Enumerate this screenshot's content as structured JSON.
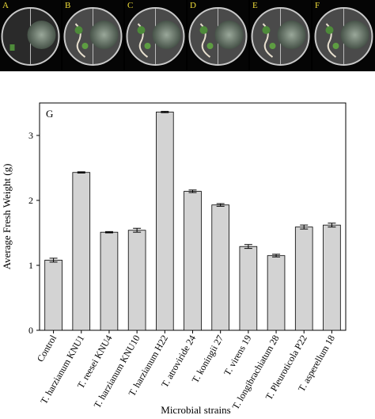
{
  "photo_panels": [
    {
      "letter": "A"
    },
    {
      "letter": "B"
    },
    {
      "letter": "C"
    },
    {
      "letter": "D"
    },
    {
      "letter": "E"
    },
    {
      "letter": "F"
    }
  ],
  "chart_data": {
    "type": "bar",
    "panel_label": "G",
    "categories": [
      "Control",
      "T. harzianum KNU1",
      "T. reesei KNU4",
      "T. harzianum KNU10",
      "T. harzianum H22",
      "T. atroviride 24",
      "T. koningii 27",
      "T. virens 19",
      "T. longibrachiatum 28",
      "T. Pleuroticola P22",
      "T. asperellum 18"
    ],
    "values": [
      1.08,
      2.43,
      1.51,
      1.54,
      3.36,
      2.14,
      1.93,
      1.29,
      1.15,
      1.59,
      1.62
    ],
    "errors": [
      0.03,
      0.01,
      0.01,
      0.03,
      0.01,
      0.02,
      0.02,
      0.03,
      0.02,
      0.03,
      0.03
    ],
    "xlabel": "Microbial strains",
    "ylabel": "Average Fresh Weight (g)",
    "ylim": [
      0,
      3.5
    ],
    "yticks": [
      0,
      1,
      2,
      3
    ],
    "bar_color": "#d3d3d3",
    "grid": false
  }
}
